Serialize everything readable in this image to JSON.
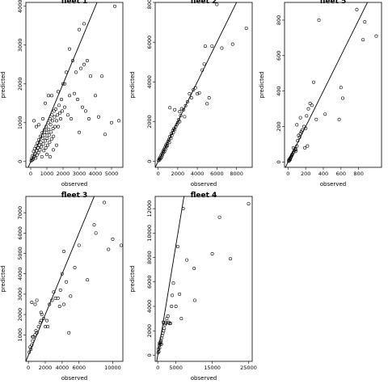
{
  "chart_data": [
    {
      "type": "scatter",
      "title": "fleet 1",
      "xlabel": "observed",
      "ylabel": "predicted",
      "xlim": [
        -300,
        5700
      ],
      "ylim": [
        -150,
        4100
      ],
      "xticks": [
        0,
        1000,
        2000,
        3000,
        4000,
        5000
      ],
      "yticks": [
        0,
        1000,
        2000,
        3000,
        4000
      ],
      "reference_line": {
        "slope": 1,
        "intercept": 0
      },
      "points": [
        [
          30,
          20
        ],
        [
          60,
          80
        ],
        [
          90,
          40
        ],
        [
          120,
          150
        ],
        [
          150,
          60
        ],
        [
          180,
          260
        ],
        [
          210,
          120
        ],
        [
          240,
          330
        ],
        [
          270,
          200
        ],
        [
          300,
          90
        ],
        [
          330,
          400
        ],
        [
          360,
          280
        ],
        [
          390,
          170
        ],
        [
          420,
          480
        ],
        [
          450,
          350
        ],
        [
          480,
          230
        ],
        [
          510,
          560
        ],
        [
          540,
          420
        ],
        [
          570,
          300
        ],
        [
          600,
          650
        ],
        [
          630,
          500
        ],
        [
          660,
          380
        ],
        [
          690,
          120
        ],
        [
          720,
          740
        ],
        [
          750,
          600
        ],
        [
          780,
          450
        ],
        [
          810,
          280
        ],
        [
          840,
          820
        ],
        [
          870,
          680
        ],
        [
          900,
          530
        ],
        [
          930,
          350
        ],
        [
          960,
          900
        ],
        [
          990,
          750
        ],
        [
          1020,
          600
        ],
        [
          1050,
          420
        ],
        [
          1080,
          1000
        ],
        [
          1110,
          830
        ],
        [
          1140,
          680
        ],
        [
          1170,
          500
        ],
        [
          1200,
          1100
        ],
        [
          1230,
          950
        ],
        [
          1260,
          760
        ],
        [
          1290,
          580
        ],
        [
          1320,
          1200
        ],
        [
          1350,
          1050
        ],
        [
          1380,
          850
        ],
        [
          1410,
          650
        ],
        [
          1440,
          1300
        ],
        [
          1470,
          1150
        ],
        [
          1500,
          900
        ],
        [
          1550,
          1350
        ],
        [
          1600,
          1050
        ],
        [
          1650,
          1200
        ],
        [
          1700,
          900
        ],
        [
          1750,
          1450
        ],
        [
          1800,
          1250
        ],
        [
          1850,
          1100
        ],
        [
          1900,
          1600
        ],
        [
          1950,
          1300
        ],
        [
          2000,
          2000
        ],
        [
          2100,
          1400
        ],
        [
          2200,
          2300
        ],
        [
          2300,
          1200
        ],
        [
          2400,
          1700
        ],
        [
          2500,
          1100
        ],
        [
          2600,
          2600
        ],
        [
          2700,
          1750
        ],
        [
          2800,
          2300
        ],
        [
          2900,
          1600
        ],
        [
          3000,
          750
        ],
        [
          3100,
          2400
        ],
        [
          3200,
          1400
        ],
        [
          3300,
          2500
        ],
        [
          3400,
          1300
        ],
        [
          3500,
          2600
        ],
        [
          3600,
          1100
        ],
        [
          3700,
          2200
        ],
        [
          4000,
          1700
        ],
        [
          4200,
          1150
        ],
        [
          4400,
          2200
        ],
        [
          4600,
          700
        ],
        [
          5000,
          1000
        ],
        [
          5200,
          4000
        ],
        [
          5450,
          1050
        ],
        [
          3000,
          3400
        ],
        [
          3300,
          3550
        ],
        [
          2400,
          2900
        ],
        [
          1300,
          1700
        ],
        [
          1700,
          1800
        ],
        [
          2100,
          2000
        ],
        [
          1000,
          180
        ],
        [
          1200,
          120
        ],
        [
          1400,
          300
        ],
        [
          1600,
          420
        ],
        [
          200,
          1050
        ],
        [
          350,
          900
        ],
        [
          500,
          950
        ],
        [
          750,
          1100
        ],
        [
          900,
          1500
        ],
        [
          1100,
          1700
        ]
      ]
    },
    {
      "type": "scatter",
      "title": "fleet 2",
      "xlabel": "observed",
      "ylabel": "predicted",
      "xlim": [
        -300,
        9600
      ],
      "ylim": [
        -300,
        8000
      ],
      "xticks": [
        0,
        2000,
        4000,
        6000,
        8000
      ],
      "yticks": [
        0,
        2000,
        4000,
        6000,
        8000
      ],
      "reference_line": {
        "slope": 1,
        "intercept": 0
      },
      "points": [
        [
          50,
          40
        ],
        [
          100,
          120
        ],
        [
          150,
          80
        ],
        [
          200,
          200
        ],
        [
          250,
          150
        ],
        [
          300,
          300
        ],
        [
          350,
          220
        ],
        [
          400,
          400
        ],
        [
          450,
          330
        ],
        [
          500,
          520
        ],
        [
          550,
          450
        ],
        [
          600,
          600
        ],
        [
          650,
          500
        ],
        [
          700,
          700
        ],
        [
          750,
          620
        ],
        [
          800,
          820
        ],
        [
          850,
          750
        ],
        [
          900,
          900
        ],
        [
          950,
          800
        ],
        [
          1000,
          1000
        ],
        [
          1100,
          1100
        ],
        [
          1150,
          950
        ],
        [
          1200,
          1250
        ],
        [
          1300,
          1150
        ],
        [
          1350,
          1400
        ],
        [
          1400,
          1300
        ],
        [
          1500,
          1550
        ],
        [
          1550,
          1450
        ],
        [
          1600,
          1650
        ],
        [
          1700,
          1600
        ],
        [
          1800,
          1750
        ],
        [
          1900,
          1850
        ],
        [
          2000,
          1950
        ],
        [
          2100,
          2100
        ],
        [
          2200,
          2500
        ],
        [
          2300,
          2300
        ],
        [
          2400,
          2650
        ],
        [
          2600,
          2600
        ],
        [
          2700,
          2250
        ],
        [
          2800,
          2800
        ],
        [
          3000,
          3000
        ],
        [
          3200,
          3400
        ],
        [
          3400,
          3200
        ],
        [
          3600,
          3600
        ],
        [
          3800,
          3700
        ],
        [
          4000,
          3400
        ],
        [
          4200,
          3450
        ],
        [
          4500,
          4600
        ],
        [
          4700,
          4900
        ],
        [
          4800,
          5800
        ],
        [
          5000,
          2900
        ],
        [
          5200,
          3200
        ],
        [
          5500,
          5800
        ],
        [
          6000,
          7900
        ],
        [
          6500,
          5700
        ],
        [
          7600,
          5900
        ],
        [
          9000,
          6700
        ],
        [
          1200,
          2700
        ],
        [
          1700,
          2600
        ],
        [
          2200,
          2000
        ]
      ]
    },
    {
      "type": "scatter",
      "title": "fleet 5",
      "xlabel": "observed",
      "ylabel": "predicted",
      "xlim": [
        -40,
        1060
      ],
      "ylim": [
        -30,
        900
      ],
      "xticks": [
        0,
        200,
        400,
        600,
        800
      ],
      "yticks": [
        0,
        200,
        400,
        600,
        800
      ],
      "reference_line": {
        "slope": 1,
        "intercept": 0
      },
      "points": [
        [
          5,
          5
        ],
        [
          10,
          12
        ],
        [
          15,
          8
        ],
        [
          20,
          20
        ],
        [
          25,
          15
        ],
        [
          30,
          25
        ],
        [
          35,
          30
        ],
        [
          40,
          35
        ],
        [
          45,
          40
        ],
        [
          50,
          45
        ],
        [
          60,
          55
        ],
        [
          70,
          65
        ],
        [
          80,
          75
        ],
        [
          90,
          70
        ],
        [
          100,
          90
        ],
        [
          110,
          120
        ],
        [
          120,
          150
        ],
        [
          130,
          140
        ],
        [
          140,
          160
        ],
        [
          150,
          170
        ],
        [
          160,
          180
        ],
        [
          180,
          200
        ],
        [
          200,
          190
        ],
        [
          210,
          260
        ],
        [
          230,
          300
        ],
        [
          250,
          330
        ],
        [
          270,
          320
        ],
        [
          290,
          450
        ],
        [
          320,
          240
        ],
        [
          350,
          800
        ],
        [
          420,
          270
        ],
        [
          580,
          240
        ],
        [
          600,
          420
        ],
        [
          620,
          360
        ],
        [
          780,
          860
        ],
        [
          850,
          690
        ],
        [
          870,
          790
        ],
        [
          1000,
          710
        ],
        [
          100,
          210
        ],
        [
          140,
          250
        ],
        [
          60,
          80
        ],
        [
          85,
          60
        ],
        [
          190,
          80
        ],
        [
          220,
          90
        ]
      ]
    },
    {
      "type": "scatter",
      "title": "fleet 3",
      "xlabel": "observed",
      "ylabel": "predicted",
      "xlim": [
        -300,
        11200
      ],
      "ylim": [
        -300,
        7800
      ],
      "xticks": [
        0,
        2000,
        4000,
        6000,
        10000
      ],
      "yticks": [
        1000,
        2000,
        3000,
        4000,
        5000,
        6000,
        7000
      ],
      "reference_line": {
        "slope": 1,
        "intercept": 0
      },
      "points": [
        [
          100,
          150
        ],
        [
          200,
          400
        ],
        [
          300,
          300
        ],
        [
          400,
          500
        ],
        [
          500,
          700
        ],
        [
          600,
          900
        ],
        [
          800,
          1000
        ],
        [
          900,
          1200
        ],
        [
          1000,
          1100
        ],
        [
          1200,
          1400
        ],
        [
          1400,
          1600
        ],
        [
          1500,
          1700
        ],
        [
          1600,
          2000
        ],
        [
          1800,
          1800
        ],
        [
          2000,
          1400
        ],
        [
          2200,
          1700
        ],
        [
          2500,
          2500
        ],
        [
          2800,
          2700
        ],
        [
          3000,
          3100
        ],
        [
          3200,
          2800
        ],
        [
          3500,
          2800
        ],
        [
          3800,
          3200
        ],
        [
          4000,
          4000
        ],
        [
          4200,
          5100
        ],
        [
          4500,
          3600
        ],
        [
          5000,
          2900
        ],
        [
          5500,
          4300
        ],
        [
          6000,
          5400
        ],
        [
          7000,
          3700
        ],
        [
          7800,
          6400
        ],
        [
          8000,
          6000
        ],
        [
          9000,
          7500
        ],
        [
          9500,
          5200
        ],
        [
          10000,
          5700
        ],
        [
          11000,
          5400
        ],
        [
          400,
          2600
        ],
        [
          800,
          2500
        ],
        [
          1000,
          2700
        ],
        [
          1500,
          2100
        ],
        [
          4800,
          1100
        ],
        [
          4200,
          2500
        ],
        [
          3700,
          2400
        ],
        [
          2300,
          1400
        ],
        [
          500,
          900
        ]
      ]
    },
    {
      "type": "scatter",
      "title": "fleet 4",
      "xlabel": "observed",
      "ylabel": "predicted",
      "xlim": [
        -700,
        26000
      ],
      "ylim": [
        -500,
        13000
      ],
      "xticks": [
        0,
        5000,
        15000,
        25000
      ],
      "yticks": [
        0,
        2000,
        4000,
        6000,
        8000,
        10000,
        12000
      ],
      "reference_line": {
        "slope": 1.8,
        "intercept": 0
      },
      "points": [
        [
          100,
          200
        ],
        [
          200,
          500
        ],
        [
          300,
          300
        ],
        [
          400,
          800
        ],
        [
          500,
          600
        ],
        [
          600,
          1000
        ],
        [
          700,
          900
        ],
        [
          800,
          1200
        ],
        [
          900,
          1100
        ],
        [
          1000,
          1400
        ],
        [
          1200,
          1600
        ],
        [
          1400,
          1800
        ],
        [
          1600,
          2000
        ],
        [
          1800,
          2200
        ],
        [
          2000,
          2500
        ],
        [
          2200,
          2700
        ],
        [
          2500,
          3000
        ],
        [
          2800,
          3200
        ],
        [
          3000,
          2700
        ],
        [
          3500,
          2600
        ],
        [
          3800,
          4000
        ],
        [
          4000,
          4900
        ],
        [
          4300,
          5900
        ],
        [
          5000,
          4000
        ],
        [
          5500,
          8900
        ],
        [
          6000,
          5000
        ],
        [
          6500,
          3000
        ],
        [
          7000,
          12000
        ],
        [
          8000,
          7800
        ],
        [
          10000,
          7100
        ],
        [
          10200,
          4500
        ],
        [
          15000,
          8300
        ],
        [
          17000,
          11300
        ],
        [
          20000,
          7900
        ],
        [
          25000,
          12400
        ],
        [
          1500,
          2700
        ],
        [
          2200,
          2600
        ],
        [
          3200,
          2600
        ],
        [
          500,
          1000
        ],
        [
          1000,
          900
        ]
      ]
    }
  ]
}
